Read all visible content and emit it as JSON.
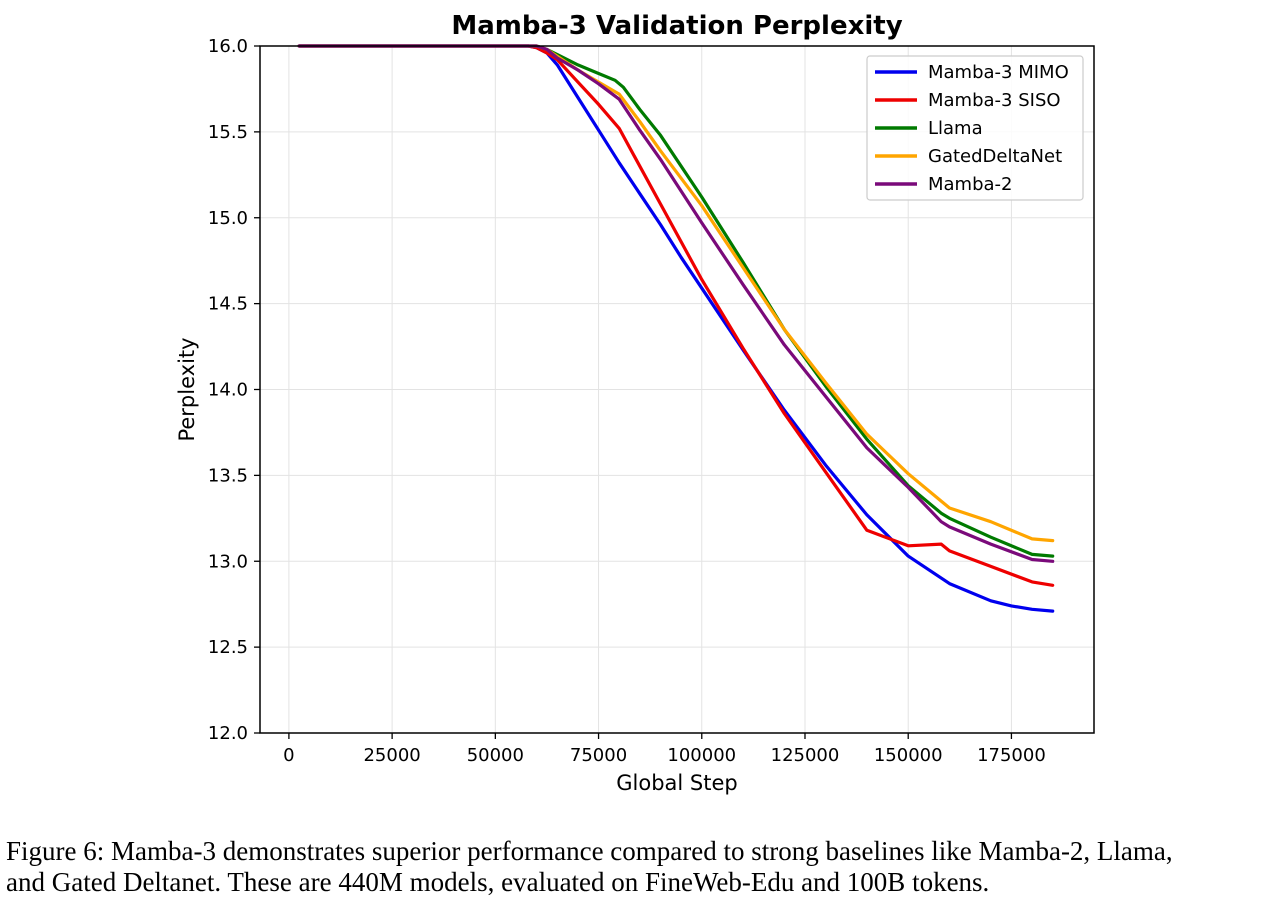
{
  "chart_data": {
    "type": "line",
    "title": "Mamba-3 Validation Perplexity",
    "xlabel": "Global Step",
    "ylabel": "Perplexity",
    "xlim": [
      -7000,
      195000
    ],
    "ylim": [
      12.0,
      16.0
    ],
    "xticks": [
      0,
      25000,
      50000,
      75000,
      100000,
      125000,
      150000,
      175000
    ],
    "xtick_labels": [
      "0",
      "25000",
      "50000",
      "75000",
      "100000",
      "125000",
      "150000",
      "175000"
    ],
    "yticks": [
      12.0,
      12.5,
      13.0,
      13.5,
      14.0,
      14.5,
      15.0,
      15.5,
      16.0
    ],
    "ytick_labels": [
      "12.0",
      "12.5",
      "13.0",
      "13.5",
      "14.0",
      "14.5",
      "15.0",
      "15.5",
      "16.0"
    ],
    "grid": true,
    "legend_position": "top-right",
    "series": [
      {
        "name": "Mamba-3 MIMO",
        "color": "#0000ee",
        "x": [
          2500,
          58000,
          60000,
          62500,
          65000,
          70000,
          75000,
          80000,
          85000,
          90000,
          95000,
          100000,
          110000,
          120000,
          130000,
          140000,
          150000,
          160000,
          170000,
          175000,
          180000,
          185000
        ],
        "y": [
          16.0,
          16.0,
          15.99,
          15.96,
          15.89,
          15.7,
          15.51,
          15.32,
          15.14,
          14.96,
          14.77,
          14.59,
          14.23,
          13.88,
          13.56,
          13.27,
          13.03,
          12.87,
          12.77,
          12.74,
          12.72,
          12.71
        ]
      },
      {
        "name": "Mamba-3 SISO",
        "color": "#ee0000",
        "x": [
          2500,
          58000,
          60000,
          62500,
          65000,
          70000,
          75000,
          80000,
          85000,
          90000,
          100000,
          110000,
          120000,
          130000,
          140000,
          150000,
          158000,
          160000,
          170000,
          180000,
          185000
        ],
        "y": [
          16.0,
          16.0,
          15.99,
          15.96,
          15.92,
          15.79,
          15.66,
          15.52,
          15.3,
          15.08,
          14.64,
          14.24,
          13.86,
          13.52,
          13.18,
          13.09,
          13.1,
          13.06,
          12.97,
          12.88,
          12.86
        ]
      },
      {
        "name": "Llama",
        "color": "#007a00",
        "x": [
          2500,
          60000,
          62500,
          65000,
          70000,
          75000,
          79000,
          81000,
          85000,
          90000,
          100000,
          110000,
          120000,
          130000,
          140000,
          150000,
          158000,
          160000,
          170000,
          180000,
          185000
        ],
        "y": [
          16.0,
          16.0,
          15.98,
          15.95,
          15.89,
          15.84,
          15.8,
          15.76,
          15.63,
          15.48,
          15.12,
          14.74,
          14.35,
          14.02,
          13.71,
          13.44,
          13.28,
          13.25,
          13.14,
          13.04,
          13.03
        ]
      },
      {
        "name": "GatedDeltaNet",
        "color": "#ffa500",
        "x": [
          2500,
          60000,
          62500,
          65000,
          70000,
          75000,
          80000,
          85000,
          90000,
          100000,
          110000,
          120000,
          130000,
          140000,
          150000,
          158000,
          160000,
          170000,
          180000,
          185000
        ],
        "y": [
          16.0,
          16.0,
          15.98,
          15.94,
          15.86,
          15.79,
          15.72,
          15.56,
          15.39,
          15.07,
          14.71,
          14.35,
          14.04,
          13.74,
          13.51,
          13.35,
          13.31,
          13.23,
          13.13,
          13.12
        ]
      },
      {
        "name": "Mamba-2",
        "color": "#7a0a7a",
        "x": [
          2500,
          60000,
          62500,
          65000,
          70000,
          75000,
          80000,
          85000,
          90000,
          100000,
          110000,
          120000,
          130000,
          140000,
          150000,
          158000,
          160000,
          170000,
          180000,
          185000
        ],
        "y": [
          16.0,
          16.0,
          15.98,
          15.93,
          15.86,
          15.78,
          15.69,
          15.51,
          15.34,
          14.97,
          14.61,
          14.26,
          13.96,
          13.66,
          13.43,
          13.23,
          13.2,
          13.1,
          13.01,
          13.0
        ]
      }
    ]
  },
  "caption": {
    "line1": "Figure 6: Mamba-3 demonstrates superior performance compared to strong baselines like Mamba-2, Llama,",
    "line2": "and Gated Deltanet. These are 440M models, evaluated on FineWeb-Edu and 100B tokens."
  }
}
